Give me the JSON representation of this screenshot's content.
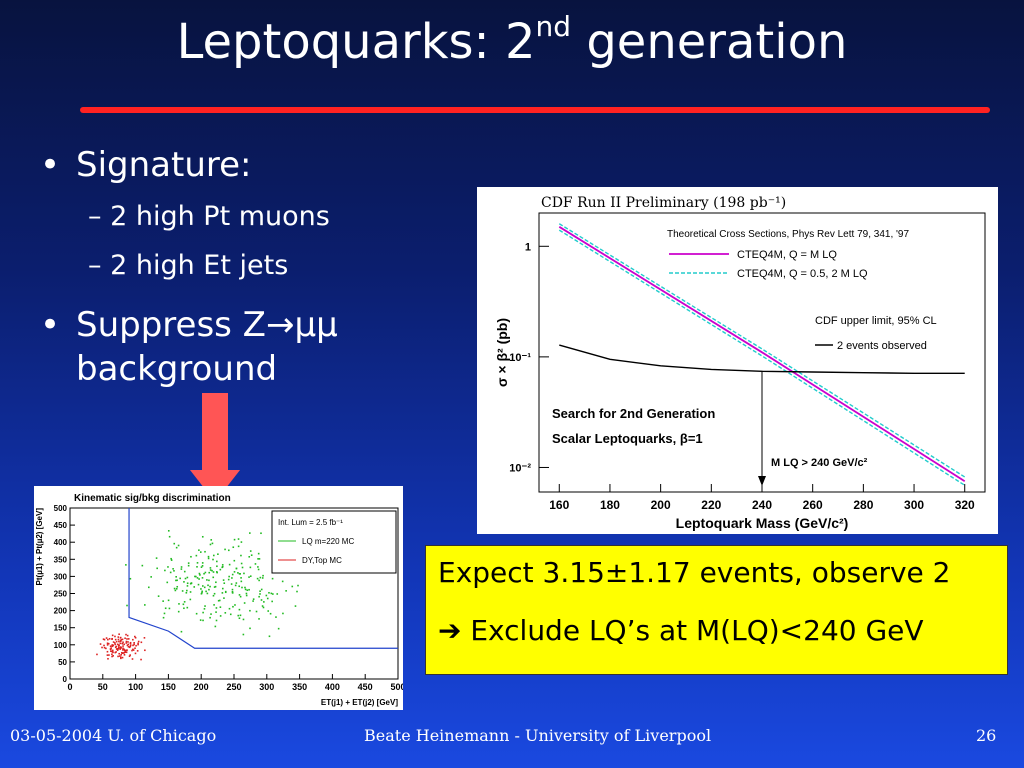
{
  "slide": {
    "title_main": "Leptoquarks: 2",
    "title_sup": "nd",
    "title_rest": " generation",
    "bullets": [
      {
        "text": "Signature:",
        "sub": [
          "2 high Pt muons",
          "2 high Et jets"
        ]
      },
      {
        "text_line1": "Suppress Z→µµ",
        "text_line2": "background"
      }
    ],
    "conclusion": {
      "line1": "Expect 3.15±1.17 events, observe 2",
      "line2_arrow": "➔",
      "line2": " Exclude LQ’s at M(LQ)<240 GeV"
    },
    "footer": {
      "left": "03-05-2004 U. of Chicago",
      "center": "Beate Heinemann - University of Liverpool",
      "page": "26"
    }
  },
  "chart_data": [
    {
      "type": "line",
      "title": "CDF Run II Preliminary (198 pb⁻¹)",
      "xlabel": "Leptoquark Mass (GeV/c²)",
      "ylabel": "σ × β² (pb)",
      "x_ticks": [
        160,
        180,
        200,
        220,
        240,
        260,
        280,
        300,
        320
      ],
      "y_ticks": [
        "1",
        "10⁻¹",
        "10⁻²"
      ],
      "xlim": [
        152,
        328
      ],
      "ylim": [
        0.006,
        2.0
      ],
      "yscale": "log",
      "legend_header": "Theoretical Cross Sections, Phys Rev Lett 79, 341, '97",
      "legend2_header": "CDF upper limit, 95% CL",
      "series": [
        {
          "name": "CTEQ4M, Q = M LQ",
          "color": "#cc00cc",
          "x": [
            160,
            240,
            320
          ],
          "y": [
            1.5,
            0.11,
            0.0075
          ]
        },
        {
          "name": "CTEQ4M, Q = 0.5, 2 M LQ",
          "color": "#22cccc",
          "x": [
            160,
            240,
            320
          ],
          "y": [
            1.6,
            0.118,
            0.0082
          ]
        },
        {
          "name": "CTEQ4M, Q = 0.5, 2 M LQ",
          "color": "#22cccc",
          "x": [
            160,
            240,
            320
          ],
          "y": [
            1.4,
            0.102,
            0.0069
          ]
        },
        {
          "name": "2 events observed",
          "color": "#000000",
          "x": [
            160,
            180,
            200,
            220,
            240,
            260,
            280,
            300,
            320
          ],
          "y": [
            0.128,
            0.095,
            0.083,
            0.077,
            0.074,
            0.073,
            0.072,
            0.071,
            0.071
          ]
        }
      ],
      "annotations": [
        "Search for 2nd Generation",
        "Scalar Leptoquarks, β=1",
        "M LQ > 240 GeV/c²"
      ],
      "limit_mass": 240
    },
    {
      "type": "scatter",
      "title": "Kinematic sig/bkg discrimination",
      "xlabel": "ET(j1) + ET(j2) [GeV]",
      "ylabel": "Pt(µ1) + Pt(µ2) [GeV]",
      "x_ticks": [
        0,
        50,
        100,
        150,
        200,
        250,
        300,
        350,
        400,
        450,
        500
      ],
      "y_ticks": [
        0,
        50,
        100,
        150,
        200,
        250,
        300,
        350,
        400,
        450,
        500
      ],
      "xlim": [
        0,
        500
      ],
      "ylim": [
        0,
        500
      ],
      "legend": [
        "Int. Lum = 2.5 fb⁻¹",
        "LQ m=220 MC",
        "DY,Top MC"
      ],
      "series": [
        {
          "name": "LQ m=220 MC",
          "color": "#22bb22",
          "center": [
            230,
            280
          ],
          "spread": [
            110,
            120
          ],
          "count": 260
        },
        {
          "name": "DY,Top MC",
          "color": "#dd2222",
          "center": [
            75,
            95
          ],
          "spread": [
            30,
            35
          ],
          "count": 140
        }
      ],
      "cut_boundary": {
        "color": "#2244cc",
        "x": [
          90,
          90,
          150,
          190,
          500
        ],
        "y": [
          500,
          180,
          140,
          90,
          90
        ]
      }
    }
  ]
}
